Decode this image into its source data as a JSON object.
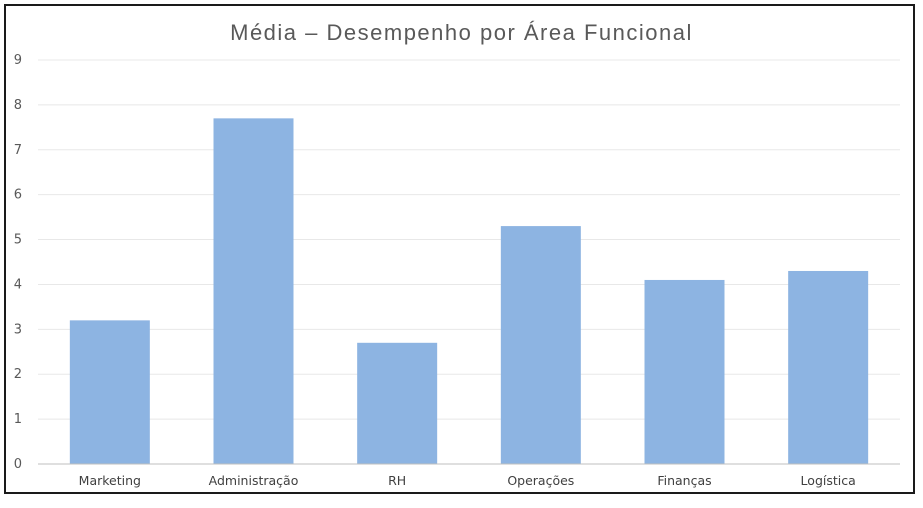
{
  "chart_data": {
    "type": "bar",
    "title": "Média – Desempenho por Área Funcional",
    "categories": [
      "Marketing",
      "Administração",
      "RH",
      "Operações",
      "Finanças",
      "Logística"
    ],
    "values": [
      3.2,
      7.7,
      2.7,
      5.3,
      4.1,
      4.3
    ],
    "xlabel": "",
    "ylabel": "",
    "ylim": [
      0,
      9
    ],
    "yticks": [
      0,
      1,
      2,
      3,
      4,
      5,
      6,
      7,
      8,
      9
    ],
    "grid": true,
    "legend": "none",
    "bar_color": "#8db4e2",
    "grid_color": "#e8e8e8",
    "axis_color": "#bfbfbf"
  }
}
